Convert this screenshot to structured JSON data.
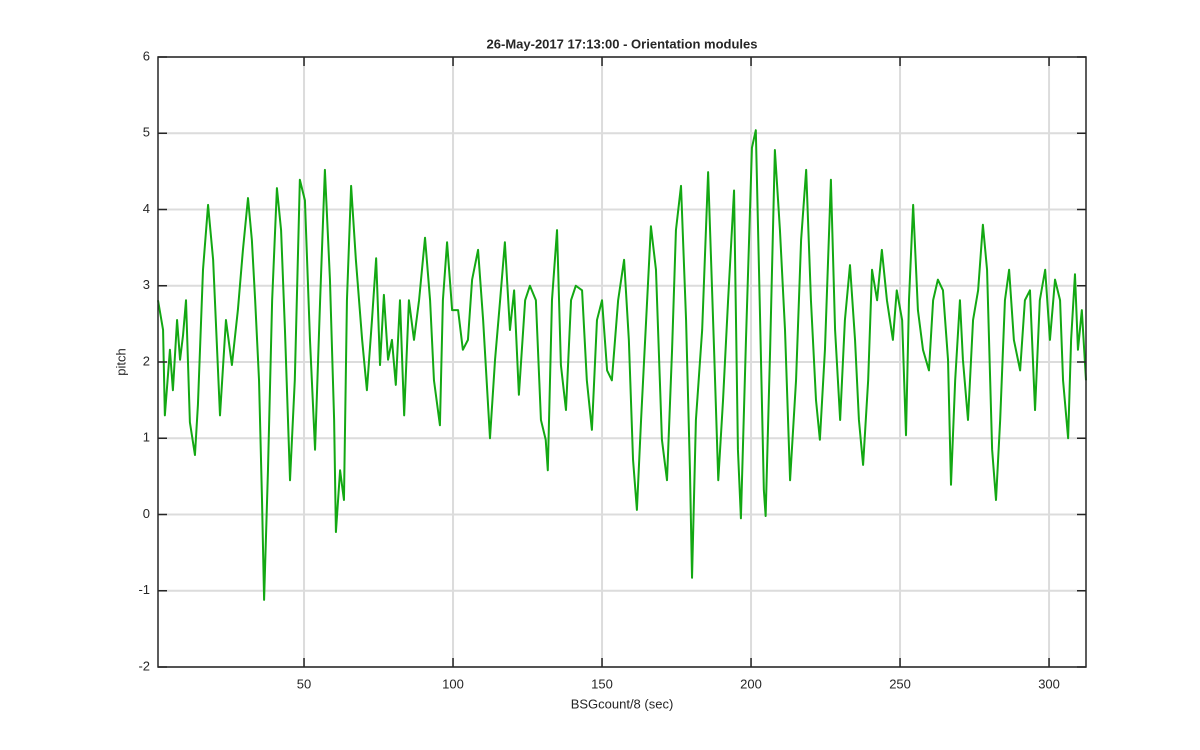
{
  "chart_data": {
    "type": "line",
    "title": "26-May-2017 17:13:00 - Orientation modules",
    "xlabel": "BSGcount/8 (sec)",
    "ylabel": "pitch",
    "color": "#13a813",
    "grid": true,
    "xlim": [
      1,
      312.4
    ],
    "ylim": [
      -2,
      6
    ],
    "xticks": [
      50,
      100,
      150,
      200,
      250,
      300
    ],
    "yticks": [
      -2,
      -1,
      0,
      1,
      2,
      3,
      4,
      5,
      6
    ],
    "x": [
      1,
      2.7,
      3.3,
      5,
      6,
      7.4,
      8.4,
      9.4,
      10.4,
      11.7,
      13.4,
      14.4,
      16.1,
      17.8,
      19.5,
      21.8,
      23.8,
      25.8,
      27.8,
      29.5,
      31.2,
      32.5,
      33.6,
      34.9,
      35.9,
      36.6,
      37.9,
      39.3,
      40.9,
      42.3,
      43.6,
      45.3,
      46.9,
      48.6,
      50.3,
      52,
      53.7,
      55.4,
      57,
      58.7,
      60.1,
      60.7,
      62.1,
      63.4,
      64.4,
      65.8,
      67.4,
      69.5,
      71.1,
      72.8,
      74.2,
      75.5,
      76.8,
      78.2,
      79.5,
      80.8,
      82.2,
      83.6,
      85.2,
      86.9,
      88.6,
      90.6,
      92.3,
      93.6,
      95.6,
      96.6,
      98,
      99.7,
      101.7,
      103.3,
      105,
      106.4,
      108.4,
      110.1,
      112.4,
      114.1,
      115.8,
      117.4,
      119.1,
      120.5,
      122.1,
      124.2,
      125.8,
      127.8,
      129.5,
      131.1,
      131.8,
      133.2,
      134.9,
      136.2,
      137.9,
      139.6,
      141.2,
      143.3,
      144.9,
      146.6,
      148.3,
      150,
      151.7,
      153.3,
      155.4,
      157.4,
      159,
      160.4,
      161.7,
      163.1,
      164.8,
      166.4,
      168.1,
      170.1,
      171.8,
      173.5,
      174.8,
      176.5,
      178.2,
      179.5,
      180.2,
      181.5,
      183.6,
      185.6,
      187.6,
      189,
      190.6,
      192.3,
      194.3,
      195.6,
      196.6,
      198.3,
      200.3,
      201.6,
      202.9,
      204.3,
      204.9,
      206.4,
      208,
      209.7,
      211.4,
      213.1,
      215.1,
      216.8,
      218.5,
      220.1,
      221.8,
      223.1,
      224.8,
      226.8,
      228.2,
      229.9,
      231.5,
      233.2,
      234.9,
      236.2,
      237.6,
      239.3,
      240.6,
      242.3,
      243.9,
      245.6,
      247.6,
      248.9,
      250.7,
      252,
      253,
      254.4,
      256,
      257.7,
      259.7,
      261.1,
      262.7,
      264.4,
      266.1,
      267.1,
      268.5,
      270.1,
      271.1,
      272.8,
      274.5,
      276.2,
      277.8,
      279.2,
      280.9,
      282.2,
      283.6,
      285.2,
      286.6,
      288.2,
      290.3,
      291.9,
      293.6,
      295.3,
      296.9,
      298.7,
      300.3,
      302,
      303.7,
      304.7,
      306.4,
      307.4,
      308.7,
      309.7,
      311,
      312.4
    ],
    "values": [
      2.81,
      2.42,
      1.3,
      2.16,
      1.63,
      2.55,
      2.03,
      2.35,
      2.81,
      1.21,
      0.78,
      1.44,
      3.21,
      4.06,
      3.34,
      1.3,
      2.55,
      1.96,
      2.68,
      3.47,
      4.15,
      3.6,
      2.81,
      1.76,
      0.19,
      -1.12,
      0.58,
      2.81,
      4.28,
      3.73,
      2.42,
      0.45,
      1.76,
      4.39,
      4.12,
      2.29,
      0.85,
      2.81,
      4.52,
      3.08,
      1.24,
      -0.23,
      0.58,
      0.19,
      2.81,
      4.31,
      3.34,
      2.29,
      1.63,
      2.55,
      3.36,
      1.96,
      2.88,
      2.03,
      2.29,
      1.7,
      2.81,
      1.3,
      2.81,
      2.29,
      2.81,
      3.63,
      2.81,
      1.76,
      1.17,
      2.81,
      3.57,
      2.68,
      2.68,
      2.16,
      2.29,
      3.08,
      3.47,
      2.55,
      1.0,
      2.03,
      2.81,
      3.57,
      2.42,
      2.94,
      1.57,
      2.81,
      3.0,
      2.81,
      1.24,
      0.98,
      0.58,
      2.81,
      3.73,
      1.96,
      1.37,
      2.81,
      3.0,
      2.94,
      1.76,
      1.11,
      2.55,
      2.81,
      1.89,
      1.76,
      2.81,
      3.34,
      2.29,
      0.72,
      0.06,
      1.24,
      2.55,
      3.78,
      3.21,
      0.98,
      0.45,
      2.16,
      3.73,
      4.31,
      2.55,
      0.58,
      -0.83,
      1.24,
      2.42,
      4.49,
      2.16,
      0.45,
      1.5,
      2.81,
      4.25,
      0.85,
      -0.05,
      2.29,
      4.81,
      5.04,
      2.81,
      0.32,
      -0.02,
      2.16,
      4.78,
      3.73,
      2.42,
      0.45,
      1.76,
      3.6,
      4.52,
      2.81,
      1.5,
      0.98,
      2.16,
      4.39,
      2.42,
      1.24,
      2.55,
      3.27,
      2.29,
      1.24,
      0.65,
      1.76,
      3.21,
      2.81,
      3.47,
      2.81,
      2.29,
      2.94,
      2.55,
      1.04,
      2.81,
      4.06,
      2.68,
      2.16,
      1.89,
      2.81,
      3.08,
      2.94,
      2.03,
      0.39,
      1.76,
      2.81,
      2.03,
      1.24,
      2.55,
      2.94,
      3.8,
      3.21,
      0.85,
      0.19,
      1.24,
      2.81,
      3.21,
      2.29,
      1.89,
      2.81,
      2.94,
      1.37,
      2.81,
      3.21,
      2.29,
      3.08,
      2.81,
      1.76,
      1.0,
      2.29,
      3.15,
      2.16,
      2.68,
      1.76
    ]
  }
}
